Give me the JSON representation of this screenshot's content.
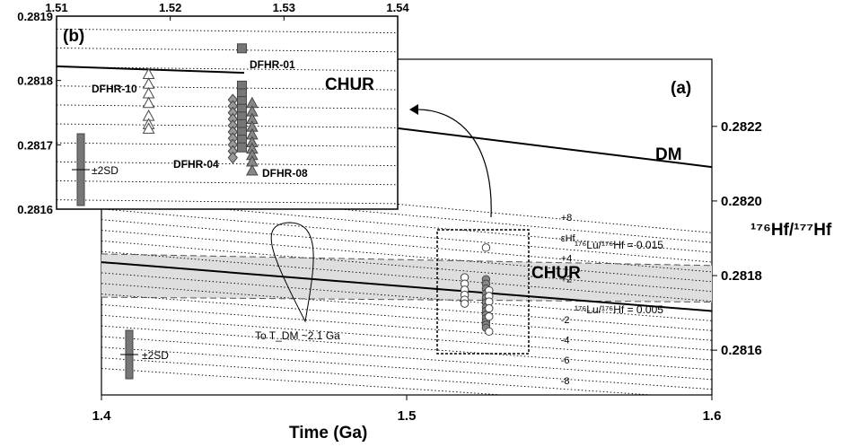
{
  "chart_data": [
    {
      "id": "a",
      "type": "scatter",
      "panel_label": "(a)",
      "xlabel": "Time (Ga)",
      "ylabel": "¹⁷⁶Hf/¹⁷⁷Hf",
      "xlim": [
        1.4,
        1.6
      ],
      "ylim": [
        0.28148,
        0.28238
      ],
      "x_ticks": [
        "1.4",
        "1.5",
        "1.6"
      ],
      "y_ticks": [
        "0.2816",
        "0.2818",
        "0.2820",
        "0.2822"
      ],
      "lines": [
        {
          "name": "CHUR",
          "label": "CHUR",
          "style": "solid",
          "points": [
            [
              1.4,
              0.281836
            ],
            [
              1.6,
              0.281705
            ]
          ]
        },
        {
          "name": "DM",
          "label": "DM",
          "style": "solid",
          "points": [
            [
              1.4,
              0.282293
            ],
            [
              1.6,
              0.282091
            ]
          ]
        },
        {
          "name": "lu-015",
          "label": "¹⁷⁶Lu/¹⁷⁶Hf = 0.015",
          "style": "dashed",
          "points": [
            [
              1.4,
              0.281858
            ],
            [
              1.6,
              0.281827
            ]
          ]
        },
        {
          "name": "lu-005",
          "label": "¹⁷⁶Lu/¹⁷⁶Hf = 0.005",
          "style": "dashed",
          "points": [
            [
              1.4,
              0.281742
            ],
            [
              1.6,
              0.281729
            ]
          ]
        }
      ],
      "epsilon_labels": [
        "+8",
        "εHf",
        "+4",
        "+2",
        "-2",
        "-4",
        "-6",
        "-8"
      ],
      "curve_label": "To T_DM ~2.1 Ga",
      "error_bar_label": "±2SD",
      "series": [
        {
          "name": "open-circles",
          "x": [
            1.519,
            1.519,
            1.519,
            1.519,
            1.519,
            1.519,
            1.526
          ],
          "y": [
            0.281795,
            0.281778,
            0.281762,
            0.281748,
            0.281735,
            0.281725,
            0.281875
          ]
        },
        {
          "name": "filled-circles",
          "x": [
            1.526,
            1.526,
            1.526,
            1.526,
            1.526,
            1.526,
            1.526,
            1.526,
            1.526,
            1.526,
            1.526,
            1.526,
            1.526
          ],
          "y": [
            0.28179,
            0.281778,
            0.281765,
            0.281752,
            0.28174,
            0.281728,
            0.281715,
            0.281705,
            0.281695,
            0.281685,
            0.281676,
            0.281668,
            0.28166
          ]
        },
        {
          "name": "open-circles-2",
          "x": [
            1.527,
            1.527,
            1.527,
            1.527,
            1.527,
            1.527
          ],
          "y": [
            0.28176,
            0.281745,
            0.28173,
            0.281712,
            0.28169,
            0.28165
          ]
        }
      ]
    },
    {
      "id": "b",
      "type": "scatter",
      "panel_label": "(b)",
      "xlim": [
        1.51,
        1.54
      ],
      "ylim": [
        0.2816,
        0.2819
      ],
      "x_ticks": [
        "1.51",
        "1.52",
        "1.53",
        "1.54"
      ],
      "y_ticks": [
        "0.2816",
        "0.2817",
        "0.2818",
        "0.2819"
      ],
      "chur_label": "CHUR",
      "chur_line": [
        [
          1.51,
          0.281822
        ],
        [
          1.5265,
          0.281812
        ]
      ],
      "error_bar_label": "±2SD",
      "series": [
        {
          "name": "DFHR-01",
          "label": "DFHR-01",
          "marker": "square",
          "x": [
            1.5263
          ],
          "y": [
            0.28185
          ]
        },
        {
          "name": "DFHR-10",
          "label": "DFHR-10",
          "marker": "open-triangle",
          "x": [
            1.5181,
            1.5181,
            1.5181,
            1.5181,
            1.5181,
            1.5181,
            1.5181
          ],
          "y": [
            0.28181,
            0.281795,
            0.28178,
            0.281765,
            0.281745,
            0.281732,
            0.281725
          ]
        },
        {
          "name": "DFHR-04",
          "label": "DFHR-04",
          "marker": "diamond",
          "x": [
            1.5255,
            1.5255,
            1.5255,
            1.5255,
            1.5255,
            1.5255,
            1.5255,
            1.5255,
            1.5255,
            1.5255
          ],
          "y": [
            0.28177,
            0.28176,
            0.28175,
            0.28174,
            0.28173,
            0.28172,
            0.28171,
            0.2817,
            0.28169,
            0.28168
          ]
        },
        {
          "name": "DFHR-02",
          "label": "",
          "marker": "square",
          "x": [
            1.5263,
            1.5263,
            1.5263,
            1.5263,
            1.5263,
            1.5263,
            1.5263,
            1.5263,
            1.5263
          ],
          "y": [
            0.281792,
            0.28178,
            0.281768,
            0.281756,
            0.281744,
            0.281732,
            0.28172,
            0.281708,
            0.281696
          ]
        },
        {
          "name": "DFHR-08",
          "label": "DFHR-08",
          "marker": "triangle",
          "x": [
            1.5272,
            1.5272,
            1.5272,
            1.5272,
            1.5272,
            1.5272,
            1.5272,
            1.5272,
            1.5272,
            1.5272
          ],
          "y": [
            0.281765,
            0.281752,
            0.28174,
            0.281728,
            0.281716,
            0.281704,
            0.281694,
            0.281684,
            0.281674,
            0.28166
          ]
        }
      ]
    }
  ]
}
